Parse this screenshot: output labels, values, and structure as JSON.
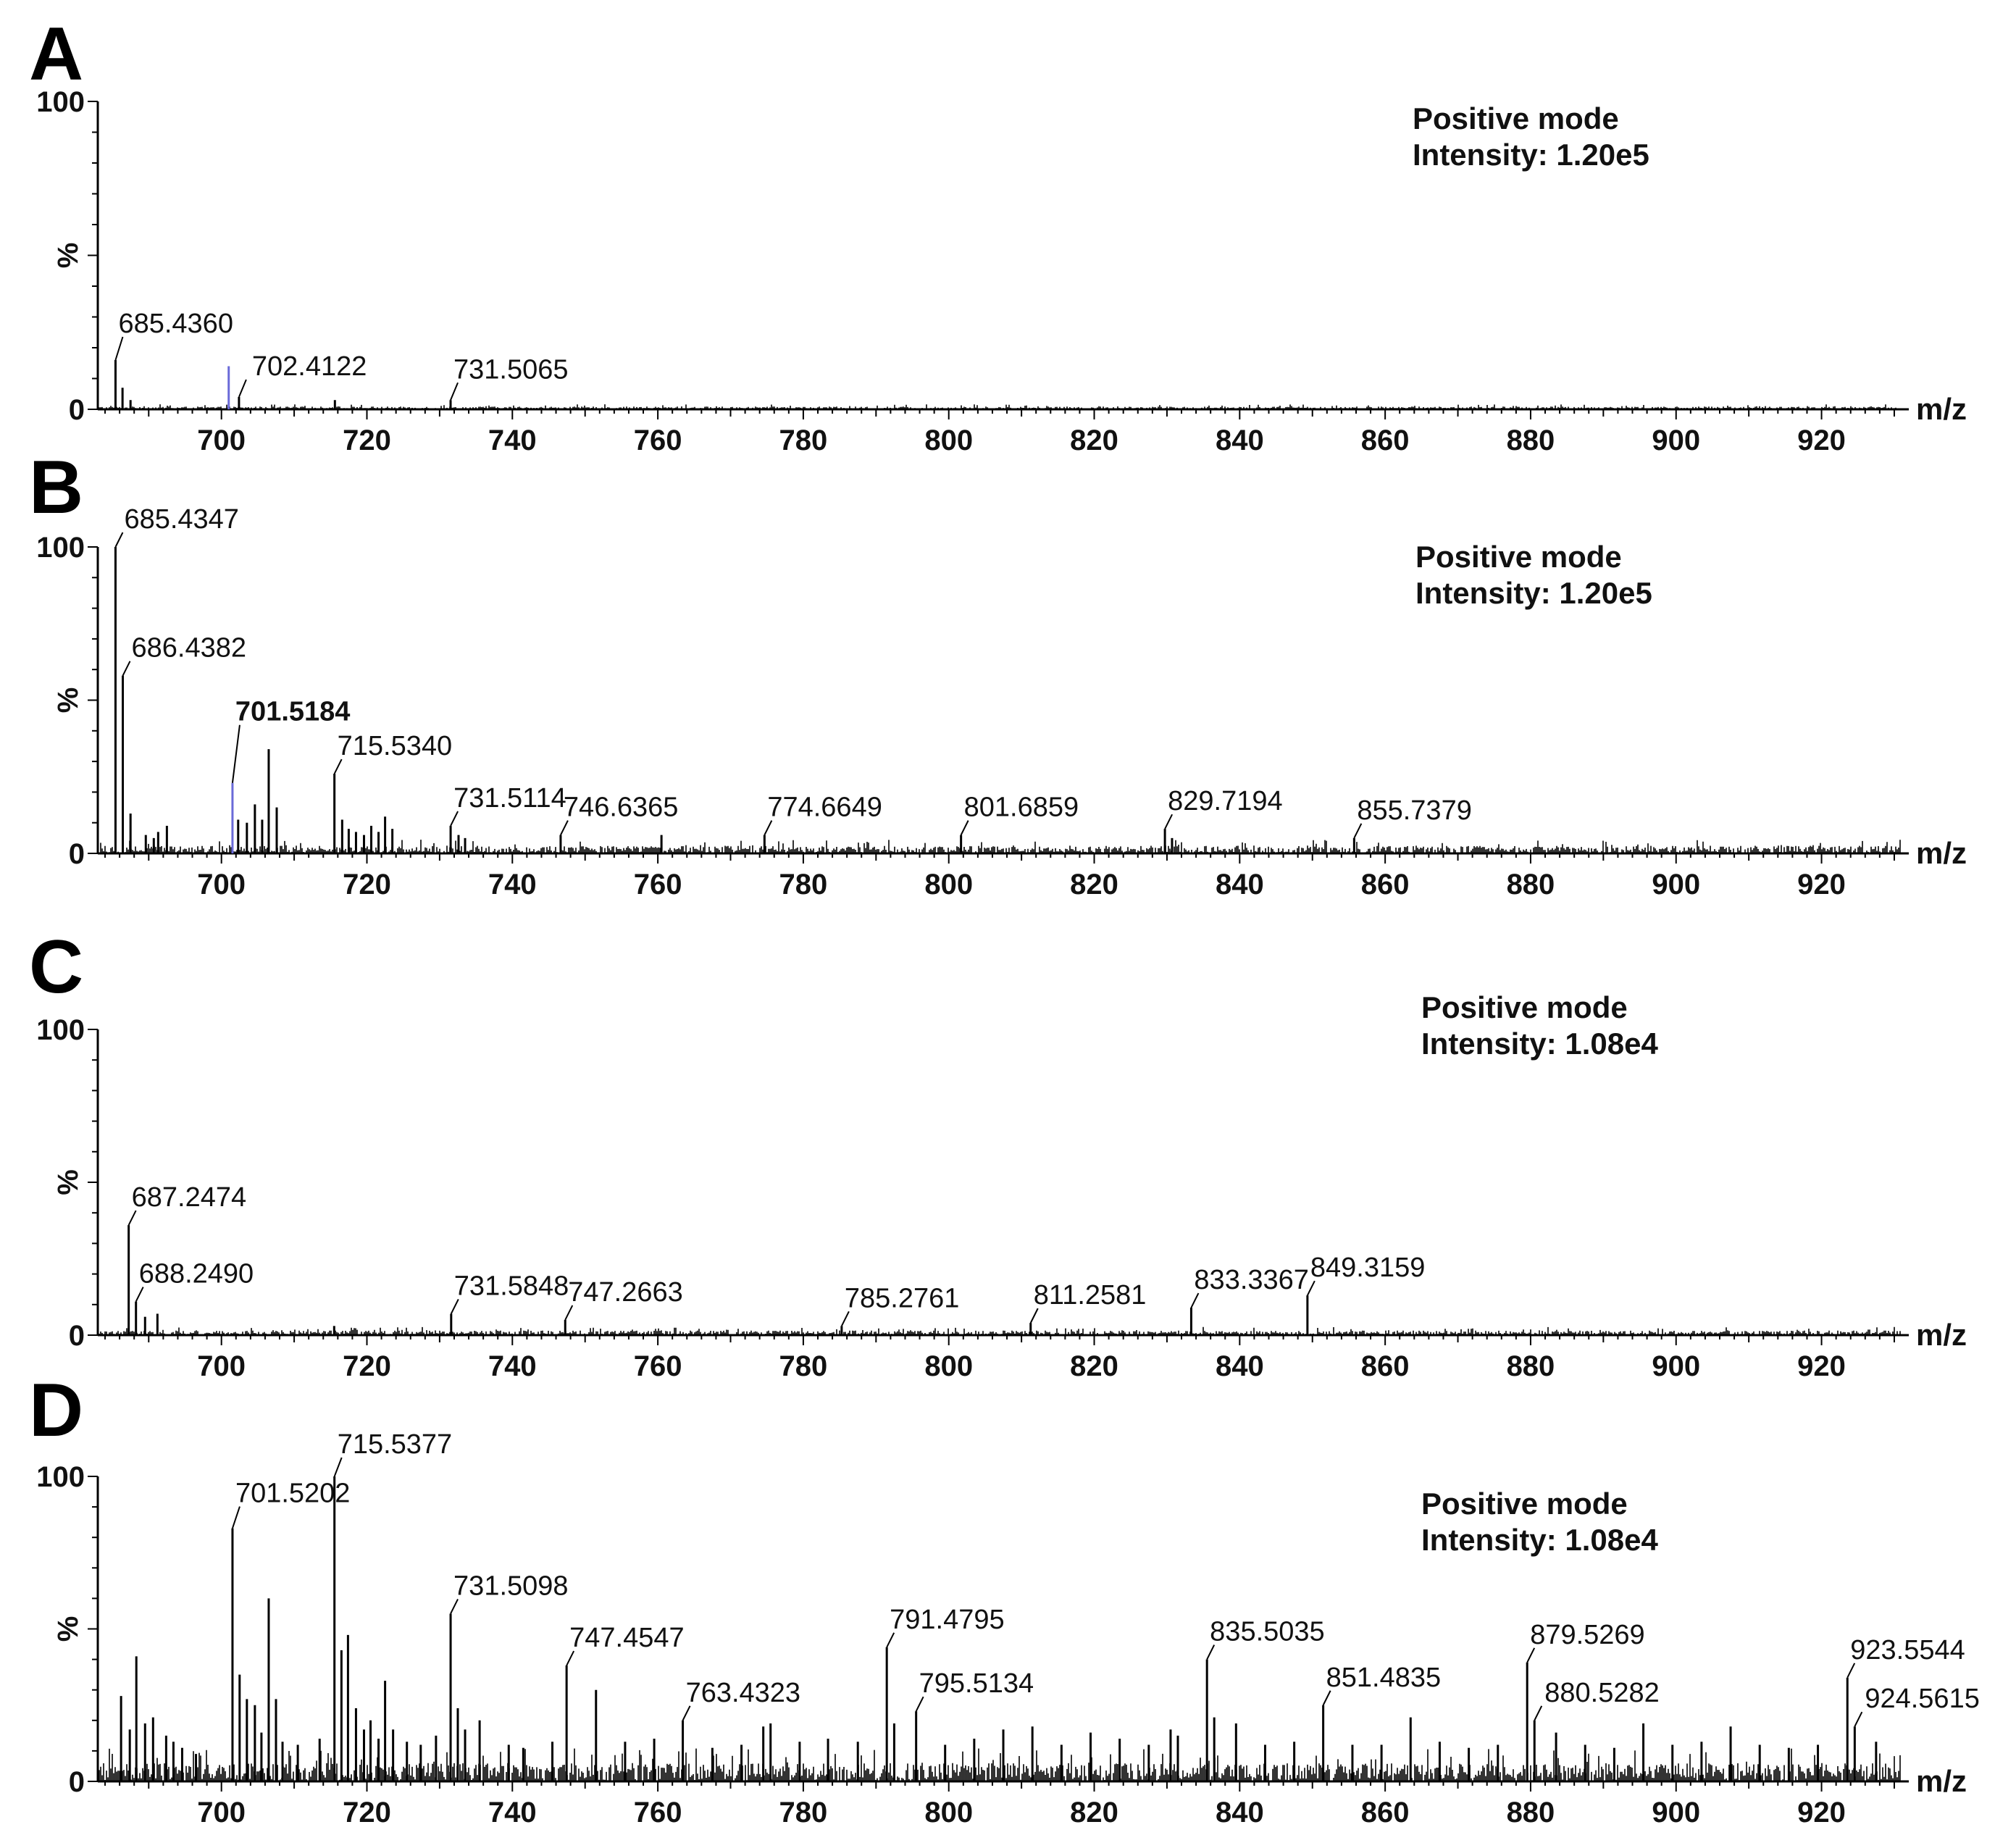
{
  "chart_data": [
    {
      "type": "line",
      "panel": "A",
      "annotation": [
        "Positive mode",
        "Intensity: 1.20e5"
      ],
      "xlabel": "m/z",
      "ylabel": "%",
      "xlim": [
        683,
        931
      ],
      "ylim": [
        0,
        100
      ],
      "xticks": [
        700,
        720,
        740,
        760,
        780,
        800,
        820,
        840,
        860,
        880,
        900,
        920
      ],
      "yticks": [
        0,
        100
      ],
      "noise_level": 0.9,
      "peaks": [
        {
          "mz": 685.436,
          "rel": 16,
          "label": "685.4360"
        },
        {
          "mz": 686.4,
          "rel": 7
        },
        {
          "mz": 687.5,
          "rel": 3
        },
        {
          "mz": 701.0,
          "rel": 14,
          "color": "#6a6ad8"
        },
        {
          "mz": 702.4122,
          "rel": 4,
          "label": "702.4122"
        },
        {
          "mz": 715.6,
          "rel": 3
        },
        {
          "mz": 731.5065,
          "rel": 3,
          "label": "731.5065"
        }
      ]
    },
    {
      "type": "line",
      "panel": "B",
      "annotation": [
        "Positive mode",
        "Intensity: 1.20e5"
      ],
      "xlabel": "m/z",
      "ylabel": "%",
      "xlim": [
        683,
        931
      ],
      "ylim": [
        0,
        100
      ],
      "xticks": [
        700,
        720,
        740,
        760,
        780,
        800,
        820,
        840,
        860,
        880,
        900,
        920
      ],
      "yticks": [
        0,
        100
      ],
      "noise_level": 2.5,
      "peaks": [
        {
          "mz": 685.4347,
          "rel": 100,
          "label": "685.4347"
        },
        {
          "mz": 686.4382,
          "rel": 58,
          "label": "686.4382"
        },
        {
          "mz": 687.5,
          "rel": 13
        },
        {
          "mz": 689.6,
          "rel": 6
        },
        {
          "mz": 690.7,
          "rel": 5
        },
        {
          "mz": 691.3,
          "rel": 7
        },
        {
          "mz": 692.5,
          "rel": 9
        },
        {
          "mz": 701.5184,
          "rel": 23,
          "label": "701.5184",
          "bold": true,
          "color": "#6a6ad8"
        },
        {
          "mz": 702.3,
          "rel": 11
        },
        {
          "mz": 703.5,
          "rel": 10
        },
        {
          "mz": 704.6,
          "rel": 16
        },
        {
          "mz": 705.6,
          "rel": 11
        },
        {
          "mz": 706.5,
          "rel": 34
        },
        {
          "mz": 707.6,
          "rel": 15
        },
        {
          "mz": 715.534,
          "rel": 26,
          "label": "715.5340"
        },
        {
          "mz": 716.6,
          "rel": 11
        },
        {
          "mz": 717.5,
          "rel": 8
        },
        {
          "mz": 718.5,
          "rel": 7
        },
        {
          "mz": 719.6,
          "rel": 6
        },
        {
          "mz": 720.6,
          "rel": 9
        },
        {
          "mz": 721.6,
          "rel": 7
        },
        {
          "mz": 722.5,
          "rel": 12
        },
        {
          "mz": 723.5,
          "rel": 8
        },
        {
          "mz": 731.5114,
          "rel": 9,
          "label": "731.5114"
        },
        {
          "mz": 732.6,
          "rel": 6
        },
        {
          "mz": 733.5,
          "rel": 5
        },
        {
          "mz": 746.6365,
          "rel": 6,
          "label": "746.6365"
        },
        {
          "mz": 760.5,
          "rel": 6
        },
        {
          "mz": 774.6649,
          "rel": 6,
          "label": "774.6649"
        },
        {
          "mz": 801.6859,
          "rel": 6,
          "label": "801.6859"
        },
        {
          "mz": 829.7194,
          "rel": 8,
          "label": "829.7194"
        },
        {
          "mz": 830.7,
          "rel": 5
        },
        {
          "mz": 855.7379,
          "rel": 5,
          "label": "855.7379"
        }
      ]
    },
    {
      "type": "line",
      "panel": "C",
      "annotation": [
        "Positive mode",
        "Intensity: 1.08e4"
      ],
      "xlabel": "m/z",
      "ylabel": "%",
      "xlim": [
        683,
        931
      ],
      "ylim": [
        0,
        100
      ],
      "xticks": [
        700,
        720,
        740,
        760,
        780,
        800,
        820,
        840,
        860,
        880,
        900,
        920
      ],
      "yticks": [
        0,
        100
      ],
      "noise_level": 1.5,
      "peaks": [
        {
          "mz": 687.2474,
          "rel": 36,
          "label": "687.2474"
        },
        {
          "mz": 688.249,
          "rel": 11,
          "label": "688.2490"
        },
        {
          "mz": 689.5,
          "rel": 6
        },
        {
          "mz": 691.2,
          "rel": 7
        },
        {
          "mz": 715.5,
          "rel": 3
        },
        {
          "mz": 731.5848,
          "rel": 7,
          "label": "731.5848"
        },
        {
          "mz": 747.2663,
          "rel": 5,
          "label": "747.2663"
        },
        {
          "mz": 785.2761,
          "rel": 3,
          "label": "785.2761"
        },
        {
          "mz": 811.2581,
          "rel": 4,
          "label": "811.2581"
        },
        {
          "mz": 833.3367,
          "rel": 9,
          "label": "833.3367"
        },
        {
          "mz": 849.3159,
          "rel": 13,
          "label": "849.3159"
        }
      ]
    },
    {
      "type": "line",
      "panel": "D",
      "annotation": [
        "Positive mode",
        "Intensity: 1.08e4"
      ],
      "xlabel": "m/z",
      "ylabel": "%",
      "xlim": [
        683,
        931
      ],
      "ylim": [
        0,
        100
      ],
      "xticks": [
        700,
        720,
        740,
        760,
        780,
        800,
        820,
        840,
        860,
        880,
        900,
        920
      ],
      "yticks": [
        0,
        100
      ],
      "noise_level": 6,
      "peaks": [
        {
          "mz": 686.2,
          "rel": 28
        },
        {
          "mz": 687.4,
          "rel": 17
        },
        {
          "mz": 688.3,
          "rel": 41
        },
        {
          "mz": 689.5,
          "rel": 19
        },
        {
          "mz": 690.6,
          "rel": 21
        },
        {
          "mz": 692.4,
          "rel": 15
        },
        {
          "mz": 693.4,
          "rel": 13
        },
        {
          "mz": 694.6,
          "rel": 11
        },
        {
          "mz": 696.5,
          "rel": 9
        },
        {
          "mz": 701.5202,
          "rel": 83,
          "label": "701.5202"
        },
        {
          "mz": 702.5,
          "rel": 35
        },
        {
          "mz": 703.5,
          "rel": 27
        },
        {
          "mz": 704.6,
          "rel": 25
        },
        {
          "mz": 705.5,
          "rel": 16
        },
        {
          "mz": 706.5,
          "rel": 60
        },
        {
          "mz": 707.5,
          "rel": 27
        },
        {
          "mz": 708.4,
          "rel": 13
        },
        {
          "mz": 710.5,
          "rel": 12
        },
        {
          "mz": 713.5,
          "rel": 14
        },
        {
          "mz": 715.5377,
          "rel": 100,
          "label": "715.5377"
        },
        {
          "mz": 716.5,
          "rel": 43
        },
        {
          "mz": 717.4,
          "rel": 48
        },
        {
          "mz": 718.5,
          "rel": 24
        },
        {
          "mz": 719.6,
          "rel": 17
        },
        {
          "mz": 720.5,
          "rel": 20
        },
        {
          "mz": 721.6,
          "rel": 14
        },
        {
          "mz": 722.5,
          "rel": 33
        },
        {
          "mz": 723.6,
          "rel": 17
        },
        {
          "mz": 725.5,
          "rel": 13
        },
        {
          "mz": 727.4,
          "rel": 12
        },
        {
          "mz": 729.5,
          "rel": 15
        },
        {
          "mz": 731.5098,
          "rel": 55,
          "label": "731.5098"
        },
        {
          "mz": 732.5,
          "rel": 24
        },
        {
          "mz": 733.5,
          "rel": 17
        },
        {
          "mz": 735.5,
          "rel": 20
        },
        {
          "mz": 739.5,
          "rel": 12
        },
        {
          "mz": 741.5,
          "rel": 11
        },
        {
          "mz": 745.5,
          "rel": 13
        },
        {
          "mz": 747.4547,
          "rel": 38,
          "label": "747.4547"
        },
        {
          "mz": 751.5,
          "rel": 30
        },
        {
          "mz": 755.5,
          "rel": 13
        },
        {
          "mz": 759.5,
          "rel": 14
        },
        {
          "mz": 763.4323,
          "rel": 20,
          "label": "763.4323"
        },
        {
          "mz": 767.5,
          "rel": 11
        },
        {
          "mz": 771.5,
          "rel": 12
        },
        {
          "mz": 774.5,
          "rel": 18
        },
        {
          "mz": 775.5,
          "rel": 19
        },
        {
          "mz": 779.5,
          "rel": 13
        },
        {
          "mz": 783.4,
          "rel": 14
        },
        {
          "mz": 787.5,
          "rel": 13
        },
        {
          "mz": 791.4795,
          "rel": 44,
          "label": "791.4795"
        },
        {
          "mz": 792.5,
          "rel": 19
        },
        {
          "mz": 795.5134,
          "rel": 23,
          "label": "795.5134"
        },
        {
          "mz": 799.5,
          "rel": 12
        },
        {
          "mz": 803.5,
          "rel": 14
        },
        {
          "mz": 807.5,
          "rel": 17
        },
        {
          "mz": 811.5,
          "rel": 18
        },
        {
          "mz": 815.5,
          "rel": 12
        },
        {
          "mz": 819.5,
          "rel": 16
        },
        {
          "mz": 823.5,
          "rel": 14
        },
        {
          "mz": 827.5,
          "rel": 12
        },
        {
          "mz": 830.5,
          "rel": 17
        },
        {
          "mz": 831.5,
          "rel": 15
        },
        {
          "mz": 835.5035,
          "rel": 40,
          "label": "835.5035"
        },
        {
          "mz": 836.5,
          "rel": 21
        },
        {
          "mz": 839.5,
          "rel": 19
        },
        {
          "mz": 843.5,
          "rel": 12
        },
        {
          "mz": 847.5,
          "rel": 13
        },
        {
          "mz": 851.4835,
          "rel": 25,
          "label": "851.4835"
        },
        {
          "mz": 855.5,
          "rel": 12
        },
        {
          "mz": 859.5,
          "rel": 12
        },
        {
          "mz": 863.5,
          "rel": 21
        },
        {
          "mz": 867.5,
          "rel": 13
        },
        {
          "mz": 871.5,
          "rel": 11
        },
        {
          "mz": 875.5,
          "rel": 12
        },
        {
          "mz": 879.5269,
          "rel": 39,
          "label": "879.5269"
        },
        {
          "mz": 880.5282,
          "rel": 20,
          "label": "880.5282"
        },
        {
          "mz": 883.5,
          "rel": 16
        },
        {
          "mz": 887.5,
          "rel": 12
        },
        {
          "mz": 891.5,
          "rel": 11
        },
        {
          "mz": 895.5,
          "rel": 19
        },
        {
          "mz": 899.5,
          "rel": 12
        },
        {
          "mz": 903.5,
          "rel": 13
        },
        {
          "mz": 907.5,
          "rel": 18
        },
        {
          "mz": 911.5,
          "rel": 12
        },
        {
          "mz": 915.5,
          "rel": 11
        },
        {
          "mz": 919.5,
          "rel": 12
        },
        {
          "mz": 923.5544,
          "rel": 34,
          "label": "923.5544"
        },
        {
          "mz": 924.5615,
          "rel": 18,
          "label": "924.5615"
        },
        {
          "mz": 927.5,
          "rel": 13
        }
      ]
    }
  ]
}
